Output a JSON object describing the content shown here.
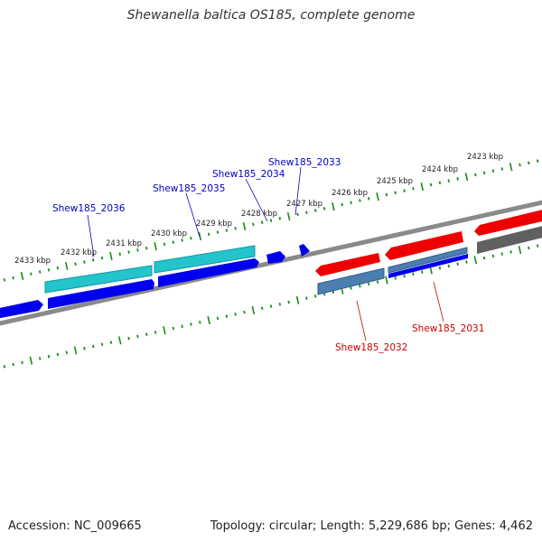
{
  "title": "Shewanella baltica OS185, complete genome",
  "accession": "Accession: NC_009665",
  "summary": "Topology: circular; Length: 5,229,686 bp; Genes: 4,462",
  "ticks": [
    "2433 kbp",
    "2432 kbp",
    "2431 kbp",
    "2430 kbp",
    "2429 kbp",
    "2428 kbp",
    "2427 kbp",
    "2426 kbp",
    "2425 kbp",
    "2424 kbp",
    "2423 kbp"
  ],
  "genes": {
    "g2036": "Shew185_2036",
    "g2035": "Shew185_2035",
    "g2034": "Shew185_2034",
    "g2033": "Shew185_2033",
    "g2032": "Shew185_2032",
    "g2031": "Shew185_2031"
  },
  "colors": {
    "forward_cds": "#0000ee",
    "reverse_cds": "#ee0000",
    "cyan_feature": "#20c0c8",
    "steel_feature": "#4a7fb0",
    "grey_feature": "#606060",
    "backbone": "#888888",
    "tick": "#1a8a1a",
    "label_blue": "#0000cc",
    "label_red": "#cc0000"
  }
}
